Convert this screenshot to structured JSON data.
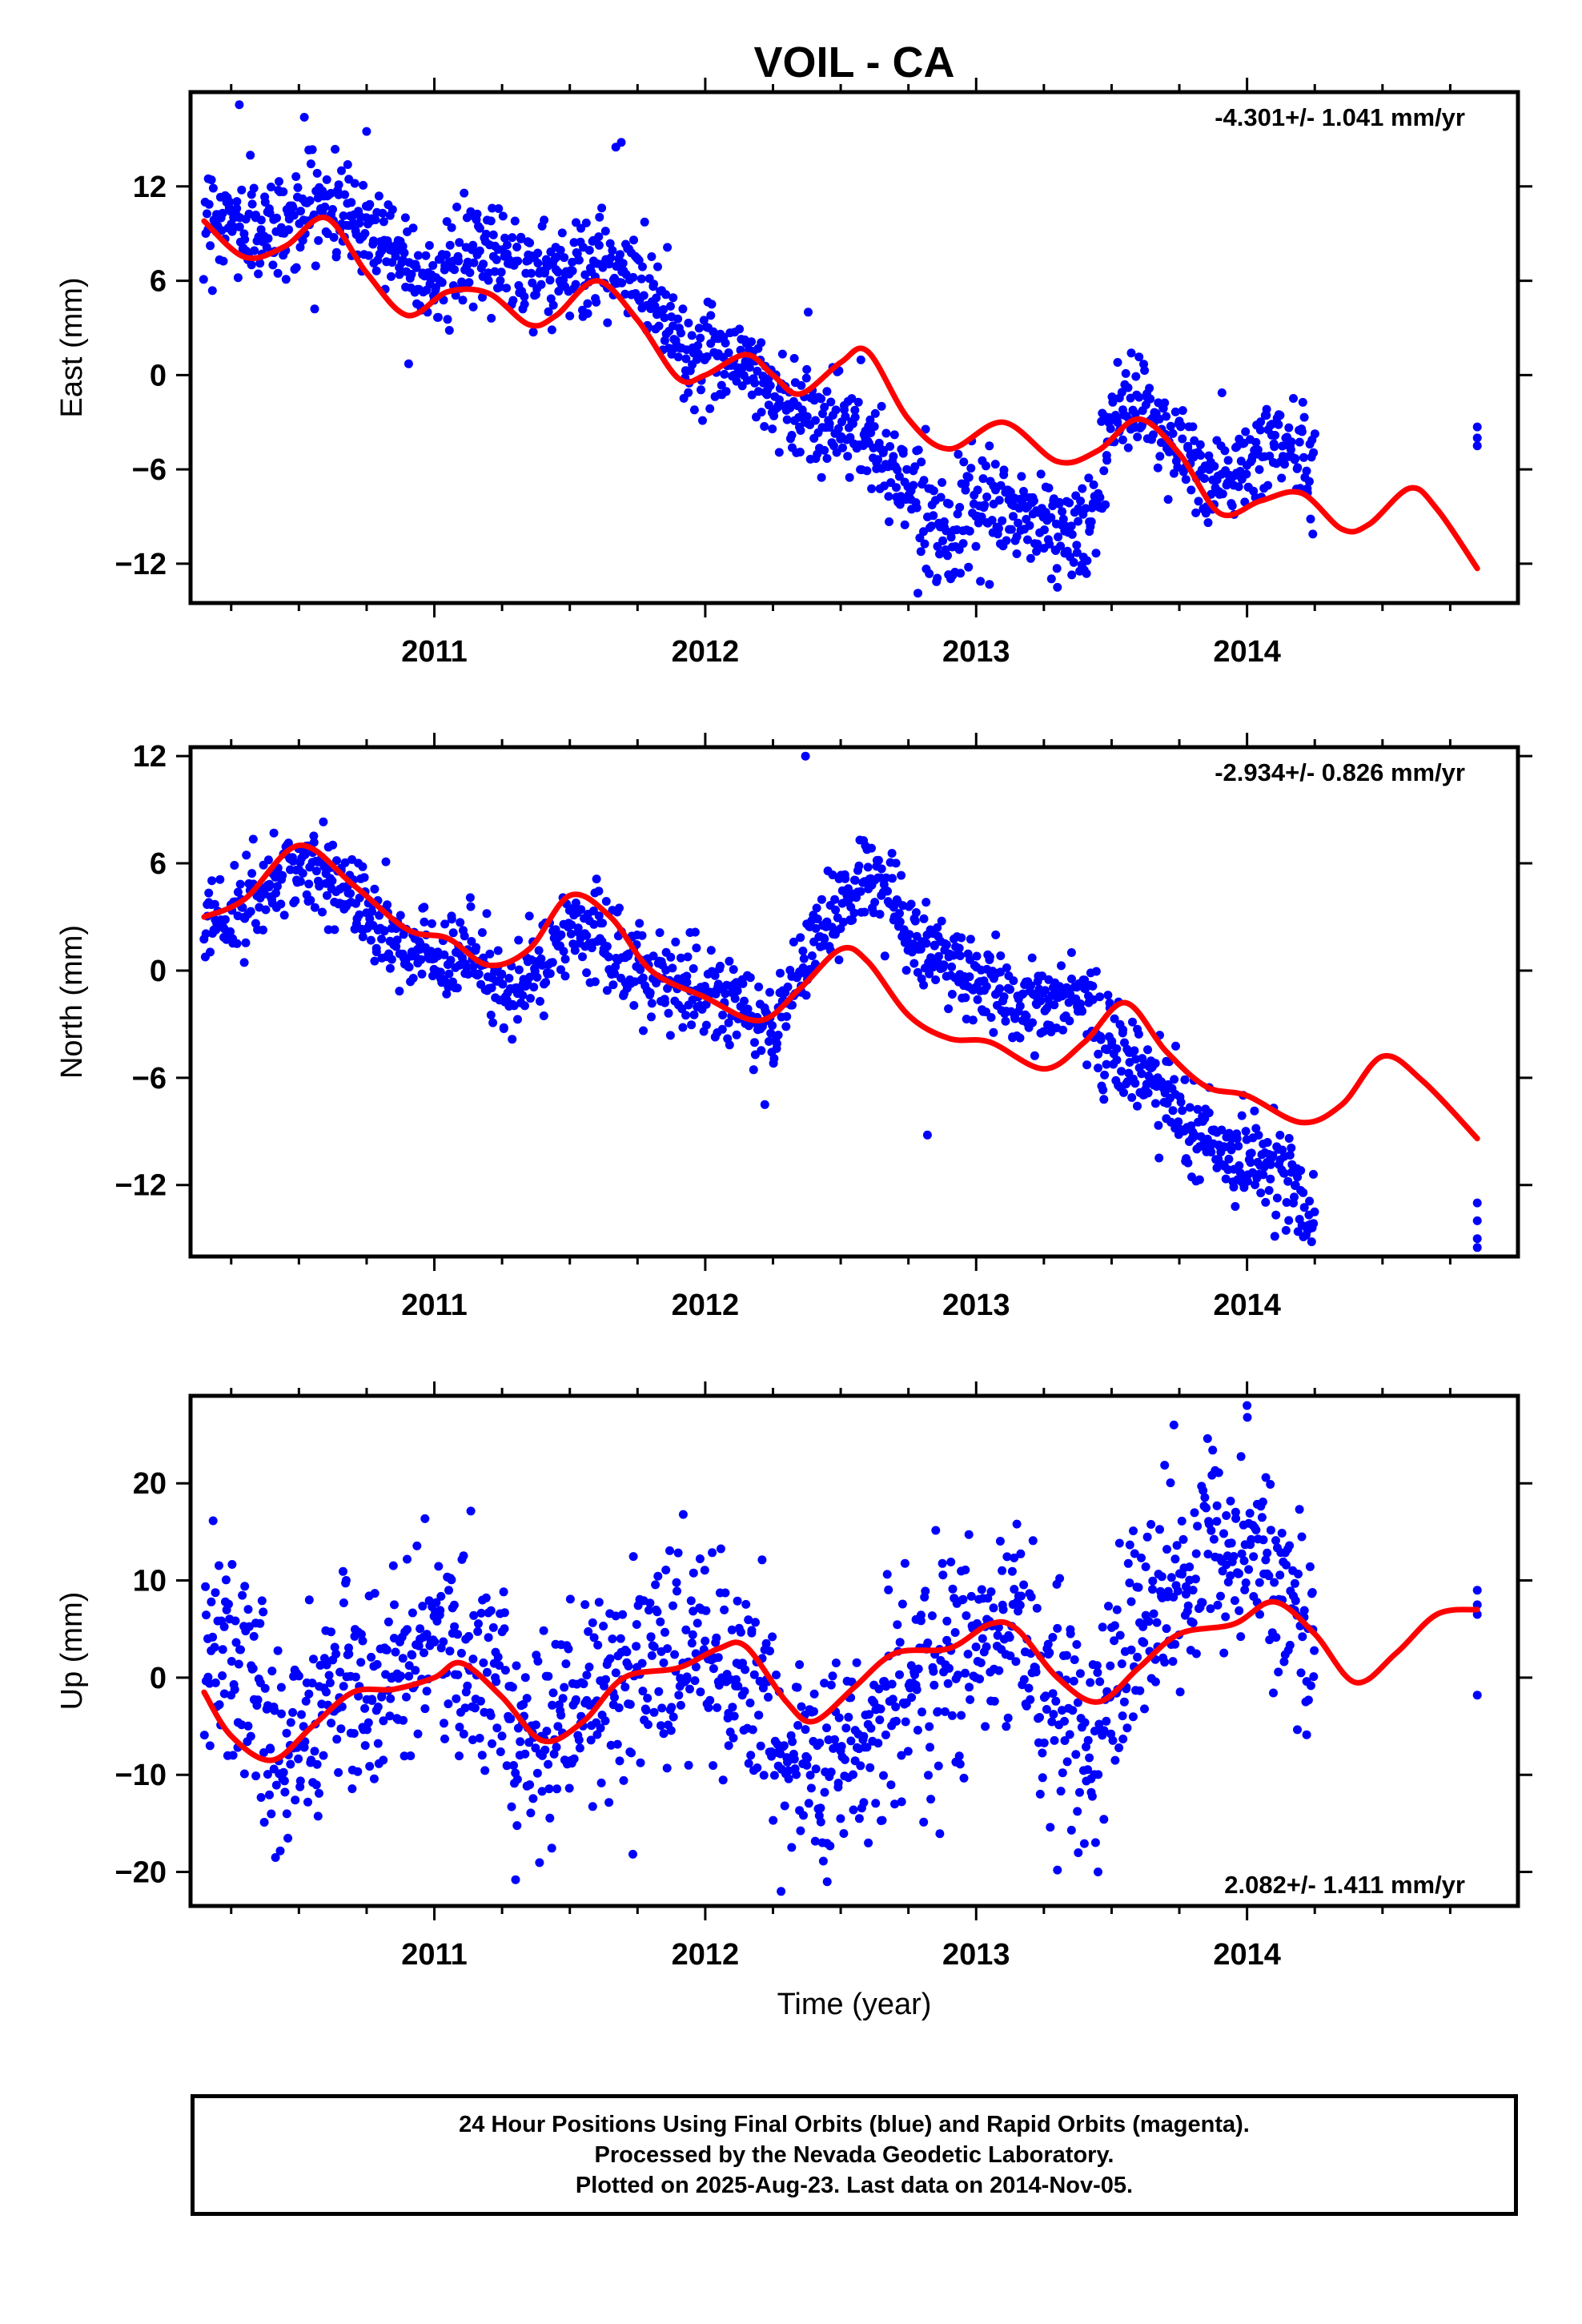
{
  "title": "VOIL - CA",
  "footer": {
    "line1": "24 Hour Positions Using Final Orbits (blue) and Rapid Orbits (magenta).",
    "line2": "Processed by the Nevada Geodetic Laboratory.",
    "line3": "Plotted on 2025-Aug-23. Last data on 2014-Nov-05."
  },
  "colors": {
    "points": "#0000ff",
    "fit": "#ff0000",
    "axes": "#000000"
  },
  "chart_data": [
    {
      "type": "scatter",
      "ylabel": "East (mm)",
      "xlim": [
        2010.1,
        2015.0
      ],
      "ylim": [
        -14.5,
        18.0
      ],
      "xticks": [
        2011,
        2012,
        2013,
        2014
      ],
      "yticks": [
        -12,
        -6,
        0,
        6,
        12
      ],
      "rate_label": "-4.301+/- 1.041 mm/yr",
      "rate_position": "top-right",
      "data_range": [
        2010.15,
        2014.25
      ],
      "extra_points": {
        "x": [
          2014.85,
          2014.85,
          2014.85
        ],
        "y": [
          -3.3,
          -4.0,
          -4.5
        ]
      },
      "outliers": {
        "x": [
          2010.28,
          2010.52,
          2010.75,
          2011.67,
          2011.69,
          2012.38,
          2013.3
        ],
        "y": [
          17.2,
          16.4,
          15.5,
          14.5,
          14.8,
          4.0,
          -13.5
        ]
      },
      "observed_trend": {
        "x": [
          2010.15,
          2010.35,
          2010.6,
          2010.8,
          2011.0,
          2011.2,
          2011.4,
          2011.6,
          2011.8,
          2011.95,
          2012.1,
          2012.3,
          2012.5,
          2012.7,
          2012.9,
          2013.05,
          2013.2,
          2013.4,
          2013.55,
          2013.7,
          2013.85,
          2014.0,
          2014.1,
          2014.25
        ],
        "y": [
          10.5,
          9.0,
          11.0,
          9.0,
          6.0,
          8.0,
          6.5,
          7.0,
          5.5,
          1.0,
          1.5,
          -2.0,
          -3.0,
          -6.0,
          -10.0,
          -8.5,
          -9.0,
          -10.5,
          -1.0,
          -3.5,
          -7.0,
          -6.0,
          -4.0,
          -6.0
        ]
      },
      "spread": 1.6,
      "fit": {
        "x": [
          2010.15,
          2010.3,
          2010.45,
          2010.6,
          2010.75,
          2010.9,
          2011.05,
          2011.2,
          2011.35,
          2011.45,
          2011.6,
          2011.75,
          2011.9,
          2012.0,
          2012.15,
          2012.25,
          2012.35,
          2012.5,
          2012.6,
          2012.75,
          2012.9,
          2013.1,
          2013.3,
          2013.45,
          2013.6,
          2013.75,
          2013.9,
          2014.05,
          2014.2,
          2014.35,
          2014.45,
          2014.6,
          2014.7,
          2014.85
        ],
        "y": [
          9.8,
          7.5,
          8.2,
          10.0,
          6.5,
          3.8,
          5.3,
          5.2,
          3.2,
          3.8,
          6.0,
          3.5,
          -0.2,
          0.0,
          1.3,
          0.0,
          -1.2,
          0.8,
          1.5,
          -2.8,
          -4.7,
          -3.0,
          -5.5,
          -4.8,
          -2.8,
          -5.0,
          -8.8,
          -8.0,
          -7.5,
          -9.8,
          -9.5,
          -7.2,
          -8.5,
          -12.3
        ]
      }
    },
    {
      "type": "scatter",
      "ylabel": "North (mm)",
      "xlim": [
        2010.1,
        2015.0
      ],
      "ylim": [
        -16.0,
        12.5
      ],
      "xticks": [
        2011,
        2012,
        2013,
        2014
      ],
      "yticks": [
        -12,
        -6,
        0,
        6,
        12
      ],
      "rate_label": "-2.934+/- 0.826 mm/yr",
      "rate_position": "top-right",
      "data_range": [
        2010.15,
        2014.25
      ],
      "extra_points": {
        "x": [
          2014.85,
          2014.85,
          2014.85,
          2014.85
        ],
        "y": [
          -13.0,
          -14.0,
          -15.0,
          -15.5
        ]
      },
      "outliers": {
        "x": [
          2012.37,
          2012.82,
          2012.22
        ],
        "y": [
          12.0,
          -9.2,
          -7.5
        ]
      },
      "observed_trend": {
        "x": [
          2010.15,
          2010.3,
          2010.5,
          2010.7,
          2010.9,
          2011.1,
          2011.3,
          2011.5,
          2011.7,
          2011.9,
          2012.1,
          2012.25,
          2012.4,
          2012.6,
          2012.75,
          2012.9,
          2013.05,
          2013.2,
          2013.4,
          2013.5,
          2013.65,
          2013.8,
          2014.0,
          2014.15,
          2014.25
        ],
        "y": [
          3.0,
          3.5,
          6.0,
          4.0,
          1.0,
          1.0,
          -1.5,
          2.5,
          0.5,
          -1.0,
          -1.5,
          -3.5,
          1.5,
          5.5,
          2.0,
          0.0,
          -1.0,
          -2.0,
          -1.5,
          -5.0,
          -6.0,
          -9.5,
          -10.5,
          -11.5,
          -13.5
        ]
      },
      "spread": 1.3,
      "fit": {
        "x": [
          2010.15,
          2010.3,
          2010.5,
          2010.7,
          2010.9,
          2011.05,
          2011.2,
          2011.35,
          2011.5,
          2011.65,
          2011.8,
          2012.0,
          2012.2,
          2012.35,
          2012.5,
          2012.6,
          2012.75,
          2012.9,
          2013.05,
          2013.25,
          2013.4,
          2013.55,
          2013.7,
          2013.85,
          2014.0,
          2014.2,
          2014.35,
          2014.5,
          2014.65,
          2014.85
        ],
        "y": [
          3.0,
          4.0,
          7.0,
          4.8,
          2.3,
          1.8,
          0.3,
          1.2,
          4.2,
          3.0,
          0.0,
          -1.5,
          -2.8,
          -1.0,
          1.2,
          0.5,
          -2.5,
          -3.8,
          -4.0,
          -5.5,
          -4.0,
          -1.8,
          -4.5,
          -6.5,
          -7.0,
          -8.5,
          -7.5,
          -4.8,
          -6.2,
          -9.4
        ]
      }
    },
    {
      "type": "scatter",
      "ylabel": "Up (mm)",
      "xlabel": "Time (year)",
      "xlim": [
        2010.1,
        2015.0
      ],
      "ylim": [
        -23.5,
        29.0
      ],
      "xticks": [
        2011,
        2012,
        2013,
        2014
      ],
      "yticks": [
        -20,
        -10,
        0,
        10,
        20
      ],
      "rate_label": "2.082+/- 1.411 mm/yr",
      "rate_position": "bottom-right",
      "data_range": [
        2010.15,
        2014.25
      ],
      "extra_points": {
        "x": [
          2014.85,
          2014.85,
          2014.85,
          2014.85
        ],
        "y": [
          9.0,
          7.5,
          6.5,
          -1.8
        ]
      },
      "outliers": {
        "x": [
          2014.0,
          2013.73,
          2011.3,
          2012.28,
          2012.45,
          2013.3,
          2013.45
        ],
        "y": [
          28.0,
          26.0,
          -20.8,
          -22.0,
          -21.0,
          -19.8,
          -20.0
        ]
      },
      "observed_trend": {
        "x": [
          2010.15,
          2010.3,
          2010.45,
          2010.6,
          2010.8,
          2011.0,
          2011.2,
          2011.4,
          2011.6,
          2011.8,
          2012.0,
          2012.15,
          2012.3,
          2012.45,
          2012.6,
          2012.8,
          2013.0,
          2013.15,
          2013.3,
          2013.45,
          2013.6,
          2013.8,
          2014.0,
          2014.15,
          2014.25
        ],
        "y": [
          3.0,
          0.0,
          -7.0,
          -3.0,
          0.0,
          3.0,
          0.0,
          -9.0,
          -2.0,
          2.0,
          1.0,
          3.0,
          -7.0,
          -10.0,
          -5.0,
          -1.0,
          3.0,
          5.0,
          -3.0,
          -5.0,
          5.0,
          12.0,
          12.0,
          10.0,
          6.0
        ]
      },
      "spread": 5.5,
      "fit": {
        "x": [
          2010.15,
          2010.25,
          2010.4,
          2010.55,
          2010.7,
          2010.85,
          2011.0,
          2011.1,
          2011.25,
          2011.4,
          2011.55,
          2011.7,
          2011.9,
          2012.05,
          2012.15,
          2012.3,
          2012.4,
          2012.55,
          2012.7,
          2012.9,
          2013.05,
          2013.15,
          2013.3,
          2013.45,
          2013.6,
          2013.75,
          2013.95,
          2014.1,
          2014.25,
          2014.4,
          2014.55,
          2014.7,
          2014.85
        ],
        "y": [
          -1.5,
          -6.0,
          -8.5,
          -5.0,
          -1.5,
          -1.2,
          0.0,
          1.5,
          -2.0,
          -6.5,
          -4.5,
          0.0,
          1.0,
          3.0,
          3.2,
          -2.5,
          -4.5,
          -1.0,
          2.5,
          3.0,
          5.5,
          5.0,
          0.0,
          -2.5,
          1.0,
          4.5,
          5.5,
          7.8,
          4.5,
          -0.5,
          2.5,
          6.5,
          7.0
        ]
      }
    }
  ]
}
